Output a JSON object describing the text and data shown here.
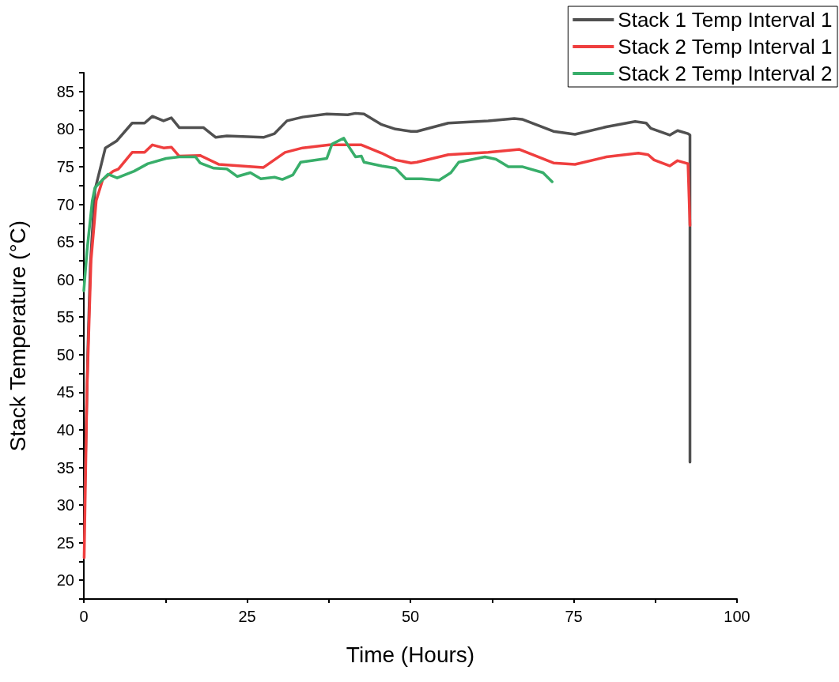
{
  "chart_data": {
    "type": "line",
    "xlabel": "Time (Hours)",
    "ylabel": "Stack Temperature (°C)",
    "xlim": [
      0,
      100
    ],
    "xticks": [
      0,
      25,
      50,
      75,
      100
    ],
    "ylim": [
      17.5,
      87.5
    ],
    "yticks": [
      20,
      25,
      30,
      35,
      40,
      45,
      50,
      55,
      60,
      65,
      70,
      75,
      80,
      85
    ],
    "grid": false,
    "legend": "top right",
    "marker": "none",
    "line_style": "solid",
    "series": [
      {
        "name": "Stack 1 Temp Interval 1",
        "color": "#505050",
        "x": [
          0.1,
          0.6,
          1.0,
          1.7,
          3.3,
          5.0,
          7.4,
          9.3,
          10.5,
          12.2,
          13.4,
          14.6,
          18.3,
          20.2,
          21.9,
          27.5,
          29.2,
          31.1,
          33.5,
          37.2,
          40.4,
          41.6,
          42.9,
          45.6,
          47.7,
          50.1,
          51,
          55.8,
          61.9,
          65.9,
          67.1,
          71.9,
          75.2,
          80,
          84.4,
          86.1,
          86.8,
          89.7,
          90.9,
          92.5,
          92.8,
          92.8
        ],
        "values": [
          30,
          50,
          62,
          71.9,
          77.5,
          78.4,
          80.8,
          80.8,
          81.7,
          81.1,
          81.5,
          80.2,
          80.2,
          78.9,
          79.1,
          78.9,
          79.4,
          81.1,
          81.6,
          82.0,
          81.9,
          82.1,
          82.0,
          80.6,
          80.0,
          79.7,
          79.7,
          80.8,
          81.1,
          81.4,
          81.3,
          79.7,
          79.3,
          80.3,
          81.0,
          80.8,
          80.1,
          79.2,
          79.8,
          79.4,
          79.2,
          35.7
        ]
      },
      {
        "name": "Stack 2 Temp Interval 1",
        "color": "#ef3e3e",
        "x": [
          0.05,
          0.5,
          1.1,
          1.9,
          2.9,
          4.5,
          5.3,
          7.4,
          9.3,
          10.5,
          12.2,
          13.4,
          14.6,
          17.8,
          20.7,
          27.5,
          30.8,
          33.5,
          37.6,
          42.5,
          45.6,
          47.7,
          50.1,
          51,
          55.8,
          61.9,
          66.7,
          71.9,
          75.2,
          80,
          84.9,
          86.4,
          87.3,
          89.7,
          90.9,
          92.5,
          92.8
        ],
        "values": [
          23.0,
          45.8,
          62.5,
          70.5,
          73.3,
          74.4,
          74.7,
          76.9,
          76.9,
          77.9,
          77.5,
          77.6,
          76.4,
          76.5,
          75.3,
          74.9,
          76.9,
          77.5,
          77.9,
          77.9,
          76.8,
          75.9,
          75.5,
          75.6,
          76.6,
          76.9,
          77.3,
          75.5,
          75.3,
          76.3,
          76.8,
          76.6,
          75.9,
          75.1,
          75.8,
          75.4,
          67.2
        ]
      },
      {
        "name": "Stack 2 Temp Interval 2",
        "color": "#38ae6a",
        "x": [
          0,
          0.5,
          1.3,
          1.7,
          3.7,
          5.1,
          7.7,
          9.8,
          12.6,
          14.6,
          17.1,
          17.8,
          19.9,
          21.9,
          23.5,
          25.5,
          27.1,
          29.2,
          30.4,
          32,
          33.2,
          37.2,
          38,
          39.8,
          40.4,
          41.6,
          42.5,
          42.9,
          45.6,
          47.7,
          49.3,
          51.7,
          54.4,
          56.2,
          57.4,
          61.4,
          63.1,
          65.0,
          67.1,
          70.3,
          71.7
        ],
        "values": [
          58.5,
          63.9,
          70.5,
          72.2,
          74.0,
          73.5,
          74.4,
          75.4,
          76.1,
          76.3,
          76.3,
          75.5,
          74.8,
          74.7,
          73.7,
          74.2,
          73.4,
          73.6,
          73.3,
          73.9,
          75.6,
          76.1,
          78.0,
          78.8,
          77.9,
          76.3,
          76.4,
          75.6,
          75.1,
          74.8,
          73.4,
          73.4,
          73.2,
          74.2,
          75.6,
          76.3,
          76.0,
          75.0,
          75.0,
          74.2,
          73.0
        ]
      }
    ]
  }
}
